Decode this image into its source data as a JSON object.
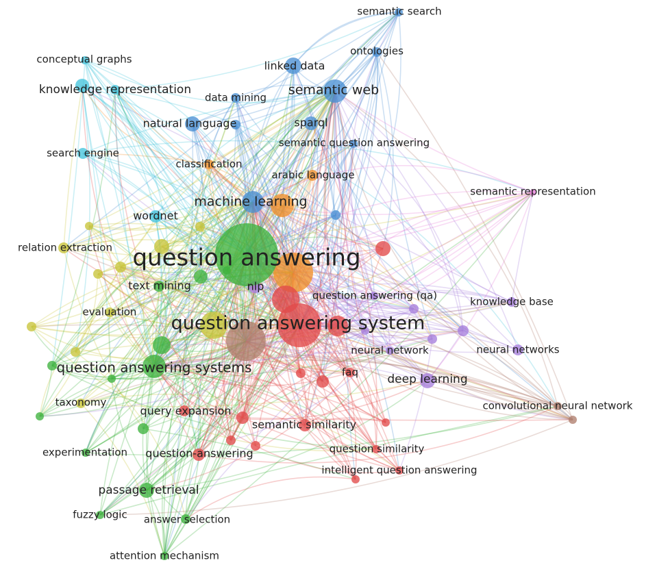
{
  "colors": {
    "red": "#e24a4a",
    "green": "#3fb23f",
    "blue": "#4a8fd4",
    "cyan": "#45c4dc",
    "yellow": "#c8c43a",
    "orange": "#f0902a",
    "purple": "#a77fdc",
    "brown": "#b07f6e",
    "pink": "#e67fd9"
  },
  "nodes": [
    {
      "id": "question-answering",
      "label": "question answering",
      "cluster": "green"
    },
    {
      "id": "question-answering-system",
      "label": "question answering system",
      "cluster": "red"
    },
    {
      "id": "question-answering-systems",
      "label": "question answering systems",
      "cluster": "green"
    },
    {
      "id": "semantic-web",
      "label": "semantic web",
      "cluster": "blue"
    },
    {
      "id": "machine-learning",
      "label": "machine learning",
      "cluster": "blue"
    },
    {
      "id": "passage-retrieval",
      "label": "passage retrieval",
      "cluster": "green"
    },
    {
      "id": "linked-data",
      "label": "linked data",
      "cluster": "blue"
    },
    {
      "id": "knowledge-representation",
      "label": "knowledge representation",
      "cluster": "cyan"
    },
    {
      "id": "natural-language",
      "label": "natural language",
      "cluster": "blue"
    },
    {
      "id": "deep-learning",
      "label": "deep learning",
      "cluster": "purple"
    },
    {
      "id": "semantic-search",
      "label": "semantic search",
      "cluster": "blue"
    },
    {
      "id": "ontologies",
      "label": "ontologies",
      "cluster": "blue"
    },
    {
      "id": "conceptual-graphs",
      "label": "conceptual graphs",
      "cluster": "cyan"
    },
    {
      "id": "data-mining",
      "label": "data mining",
      "cluster": "blue"
    },
    {
      "id": "sparql",
      "label": "sparql",
      "cluster": "blue"
    },
    {
      "id": "semantic-question-answering",
      "label": "semantic question answering",
      "cluster": "blue"
    },
    {
      "id": "search-engine",
      "label": "search engine",
      "cluster": "cyan"
    },
    {
      "id": "classification",
      "label": "classification",
      "cluster": "orange"
    },
    {
      "id": "arabic-language",
      "label": "arabic language",
      "cluster": "orange"
    },
    {
      "id": "semantic-representation",
      "label": "semantic representation",
      "cluster": "pink"
    },
    {
      "id": "wordnet",
      "label": "wordnet",
      "cluster": "cyan"
    },
    {
      "id": "relation-extraction",
      "label": "relation extraction",
      "cluster": "yellow"
    },
    {
      "id": "text-mining",
      "label": "text mining",
      "cluster": "green"
    },
    {
      "id": "nlp",
      "label": "nlp",
      "cluster": "purple"
    },
    {
      "id": "question-answering-qa",
      "label": "question answering (qa)",
      "cluster": "purple"
    },
    {
      "id": "knowledge-base",
      "label": "knowledge base",
      "cluster": "purple"
    },
    {
      "id": "evaluation",
      "label": "evaluation",
      "cluster": "yellow"
    },
    {
      "id": "neural-network",
      "label": "neural network",
      "cluster": "purple"
    },
    {
      "id": "neural-networks",
      "label": "neural networks",
      "cluster": "purple"
    },
    {
      "id": "faq",
      "label": "faq",
      "cluster": "red"
    },
    {
      "id": "taxonomy",
      "label": "taxonomy",
      "cluster": "yellow"
    },
    {
      "id": "convolutional-neural-network",
      "label": "convolutional neural network",
      "cluster": "brown"
    },
    {
      "id": "query-expansion",
      "label": "query expansion",
      "cluster": "red"
    },
    {
      "id": "semantic-similarity",
      "label": "semantic similarity",
      "cluster": "red"
    },
    {
      "id": "experimentation",
      "label": "experimentation",
      "cluster": "green"
    },
    {
      "id": "question-answering-hyphen",
      "label": "question-answering",
      "cluster": "red"
    },
    {
      "id": "question-similarity",
      "label": "question similarity",
      "cluster": "red"
    },
    {
      "id": "intelligent-question-answering",
      "label": "intelligent question answering",
      "cluster": "red"
    },
    {
      "id": "fuzzy-logic",
      "label": "fuzzy logic",
      "cluster": "green"
    },
    {
      "id": "answer-selection",
      "label": "answer selection",
      "cluster": "green"
    },
    {
      "id": "attention-mechanism",
      "label": "attention mechanism",
      "cluster": "green"
    }
  ]
}
